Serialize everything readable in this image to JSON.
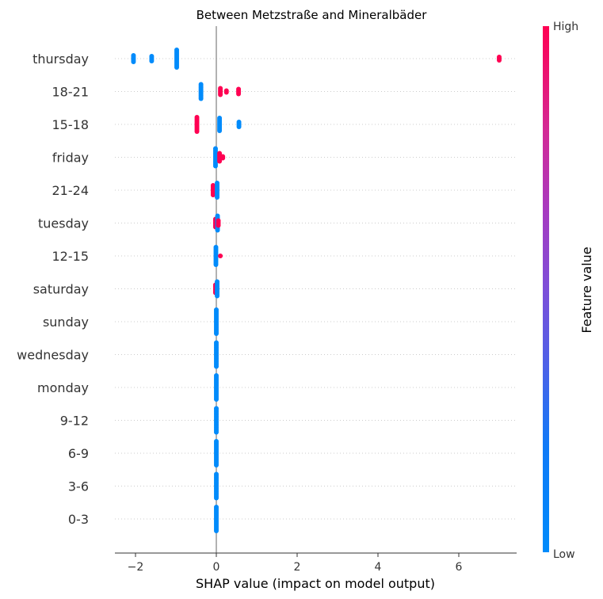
{
  "chart_data": {
    "type": "scatter",
    "title": "Between Metzstraße and Mineralbäder",
    "xlabel": "SHAP value (impact on model output)",
    "xlim": [
      -2.5,
      7.5
    ],
    "xticks": [
      -2,
      0,
      2,
      4,
      6
    ],
    "colorbar": {
      "title": "Feature value",
      "high_label": "High",
      "low_label": "Low",
      "low_color": "#008bfb",
      "high_color": "#ff0052"
    },
    "features": [
      {
        "name": "thursday",
        "points": [
          {
            "x": -2.05,
            "v": "low",
            "n": 5
          },
          {
            "x": -1.6,
            "v": "low",
            "n": 4
          },
          {
            "x": -0.98,
            "v": "low",
            "n": 12
          },
          {
            "x": 7.0,
            "v": "high",
            "n": 3
          }
        ]
      },
      {
        "name": "18-21",
        "points": [
          {
            "x": -0.38,
            "v": "low",
            "n": 10
          },
          {
            "x": 0.1,
            "v": "high",
            "n": 5
          },
          {
            "x": 0.25,
            "v": "high",
            "n": 2
          },
          {
            "x": 0.55,
            "v": "high",
            "n": 4
          }
        ]
      },
      {
        "name": "15-18",
        "points": [
          {
            "x": -0.48,
            "v": "high",
            "n": 10
          },
          {
            "x": 0.08,
            "v": "low",
            "n": 9
          },
          {
            "x": 0.56,
            "v": "low",
            "n": 4
          }
        ]
      },
      {
        "name": "friday",
        "points": [
          {
            "x": -0.02,
            "v": "low",
            "n": 12
          },
          {
            "x": 0.08,
            "v": "high",
            "n": 6
          },
          {
            "x": 0.16,
            "v": "high",
            "n": 2
          }
        ]
      },
      {
        "name": "21-24",
        "points": [
          {
            "x": -0.08,
            "v": "high",
            "n": 7
          },
          {
            "x": 0.02,
            "v": "low",
            "n": 10
          }
        ]
      },
      {
        "name": "tuesday",
        "points": [
          {
            "x": -0.02,
            "v": "high",
            "n": 6
          },
          {
            "x": 0.03,
            "v": "low",
            "n": 10
          },
          {
            "x": 0.05,
            "v": "high",
            "n": 4
          }
        ]
      },
      {
        "name": "12-15",
        "points": [
          {
            "x": -0.01,
            "v": "low",
            "n": 12
          },
          {
            "x": 0.1,
            "v": "high",
            "n": 1
          }
        ]
      },
      {
        "name": "saturday",
        "points": [
          {
            "x": -0.02,
            "v": "high",
            "n": 6
          },
          {
            "x": 0.02,
            "v": "low",
            "n": 10
          }
        ]
      },
      {
        "name": "sunday",
        "points": [
          {
            "x": 0.0,
            "v": "low",
            "n": 16
          }
        ]
      },
      {
        "name": "wednesday",
        "points": [
          {
            "x": 0.0,
            "v": "low",
            "n": 16
          }
        ]
      },
      {
        "name": "monday",
        "points": [
          {
            "x": 0.0,
            "v": "low",
            "n": 16
          }
        ]
      },
      {
        "name": "9-12",
        "points": [
          {
            "x": 0.0,
            "v": "low",
            "n": 16
          }
        ]
      },
      {
        "name": "6-9",
        "points": [
          {
            "x": 0.0,
            "v": "low",
            "n": 16
          }
        ]
      },
      {
        "name": "3-6",
        "points": [
          {
            "x": 0.0,
            "v": "low",
            "n": 16
          }
        ]
      },
      {
        "name": "0-3",
        "points": [
          {
            "x": 0.0,
            "v": "low",
            "n": 16
          }
        ]
      }
    ]
  }
}
